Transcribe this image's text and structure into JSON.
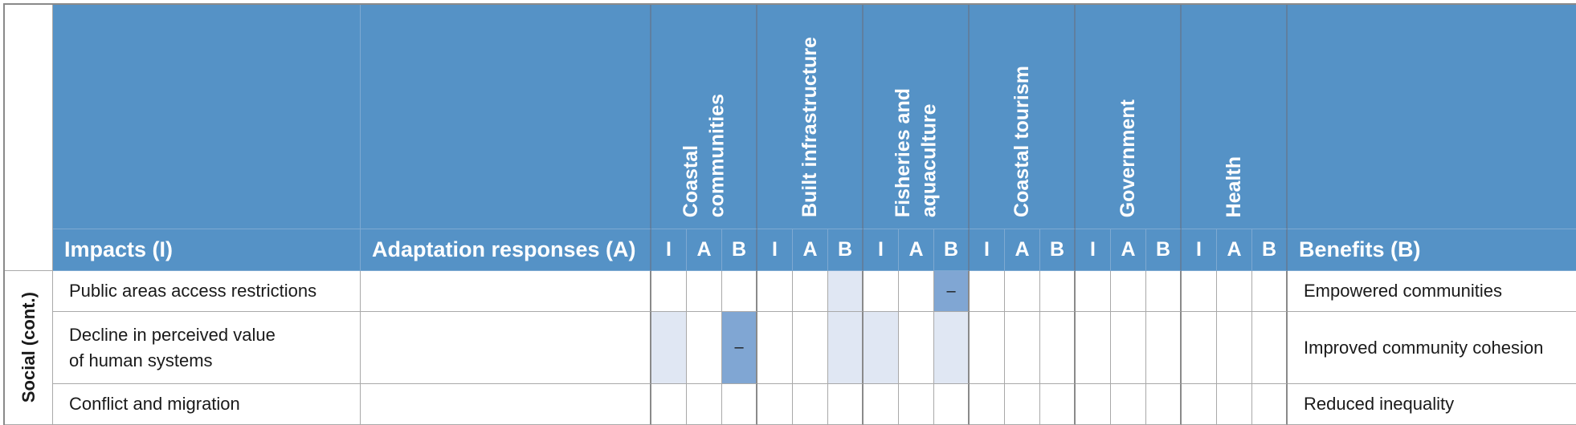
{
  "columns": {
    "impacts": "Impacts (I)",
    "adaptation": "Adaptation responses (A)",
    "benefits": "Benefits (B)",
    "sub": [
      "I",
      "A",
      "B"
    ]
  },
  "sectors": [
    {
      "label": "Coastal\ncommunities"
    },
    {
      "label": "Built infrastructure"
    },
    {
      "label": "Fisheries and\naquaculture"
    },
    {
      "label": "Coastal tourism"
    },
    {
      "label": "Government"
    },
    {
      "label": "Health"
    }
  ],
  "section_label": "Social (cont.)",
  "rows": [
    {
      "impact": "Public areas access restrictions",
      "adaptation": "",
      "benefit": "Empowered communities"
    },
    {
      "impact": "Decline in perceived value\nof human systems",
      "adaptation": "",
      "benefit": "Improved community cohesion"
    },
    {
      "impact": "Conflict and migration",
      "adaptation": "",
      "benefit": "Reduced inequality"
    }
  ],
  "cells": [
    [
      "",
      "",
      "",
      "",
      "",
      "light",
      "",
      "",
      "dark",
      "",
      "",
      "",
      "",
      "",
      "",
      "",
      "",
      ""
    ],
    [
      "light",
      "",
      "dark",
      "",
      "",
      "light",
      "light",
      "",
      "light",
      "",
      "",
      "",
      "",
      "",
      "",
      "",
      "",
      ""
    ],
    [
      "",
      "",
      "",
      "",
      "",
      "",
      "",
      "",
      "",
      "",
      "",
      "",
      "",
      "",
      "",
      "",
      "",
      ""
    ]
  ],
  "marks": [
    [
      "",
      "",
      "",
      "",
      "",
      "",
      "",
      "",
      "–",
      "",
      "",
      "",
      "",
      "",
      "",
      "",
      "",
      ""
    ],
    [
      "",
      "",
      "–",
      "",
      "",
      "",
      "",
      "",
      "",
      "",
      "",
      "",
      "",
      "",
      "",
      "",
      "",
      ""
    ],
    [
      "",
      "",
      "",
      "",
      "",
      "",
      "",
      "",
      "",
      "",
      "",
      "",
      "",
      "",
      "",
      "",
      "",
      ""
    ]
  ],
  "colors": {
    "header": "#5592c6",
    "light_fill": "#e0e7f3",
    "dark_fill": "#80a6d3"
  }
}
